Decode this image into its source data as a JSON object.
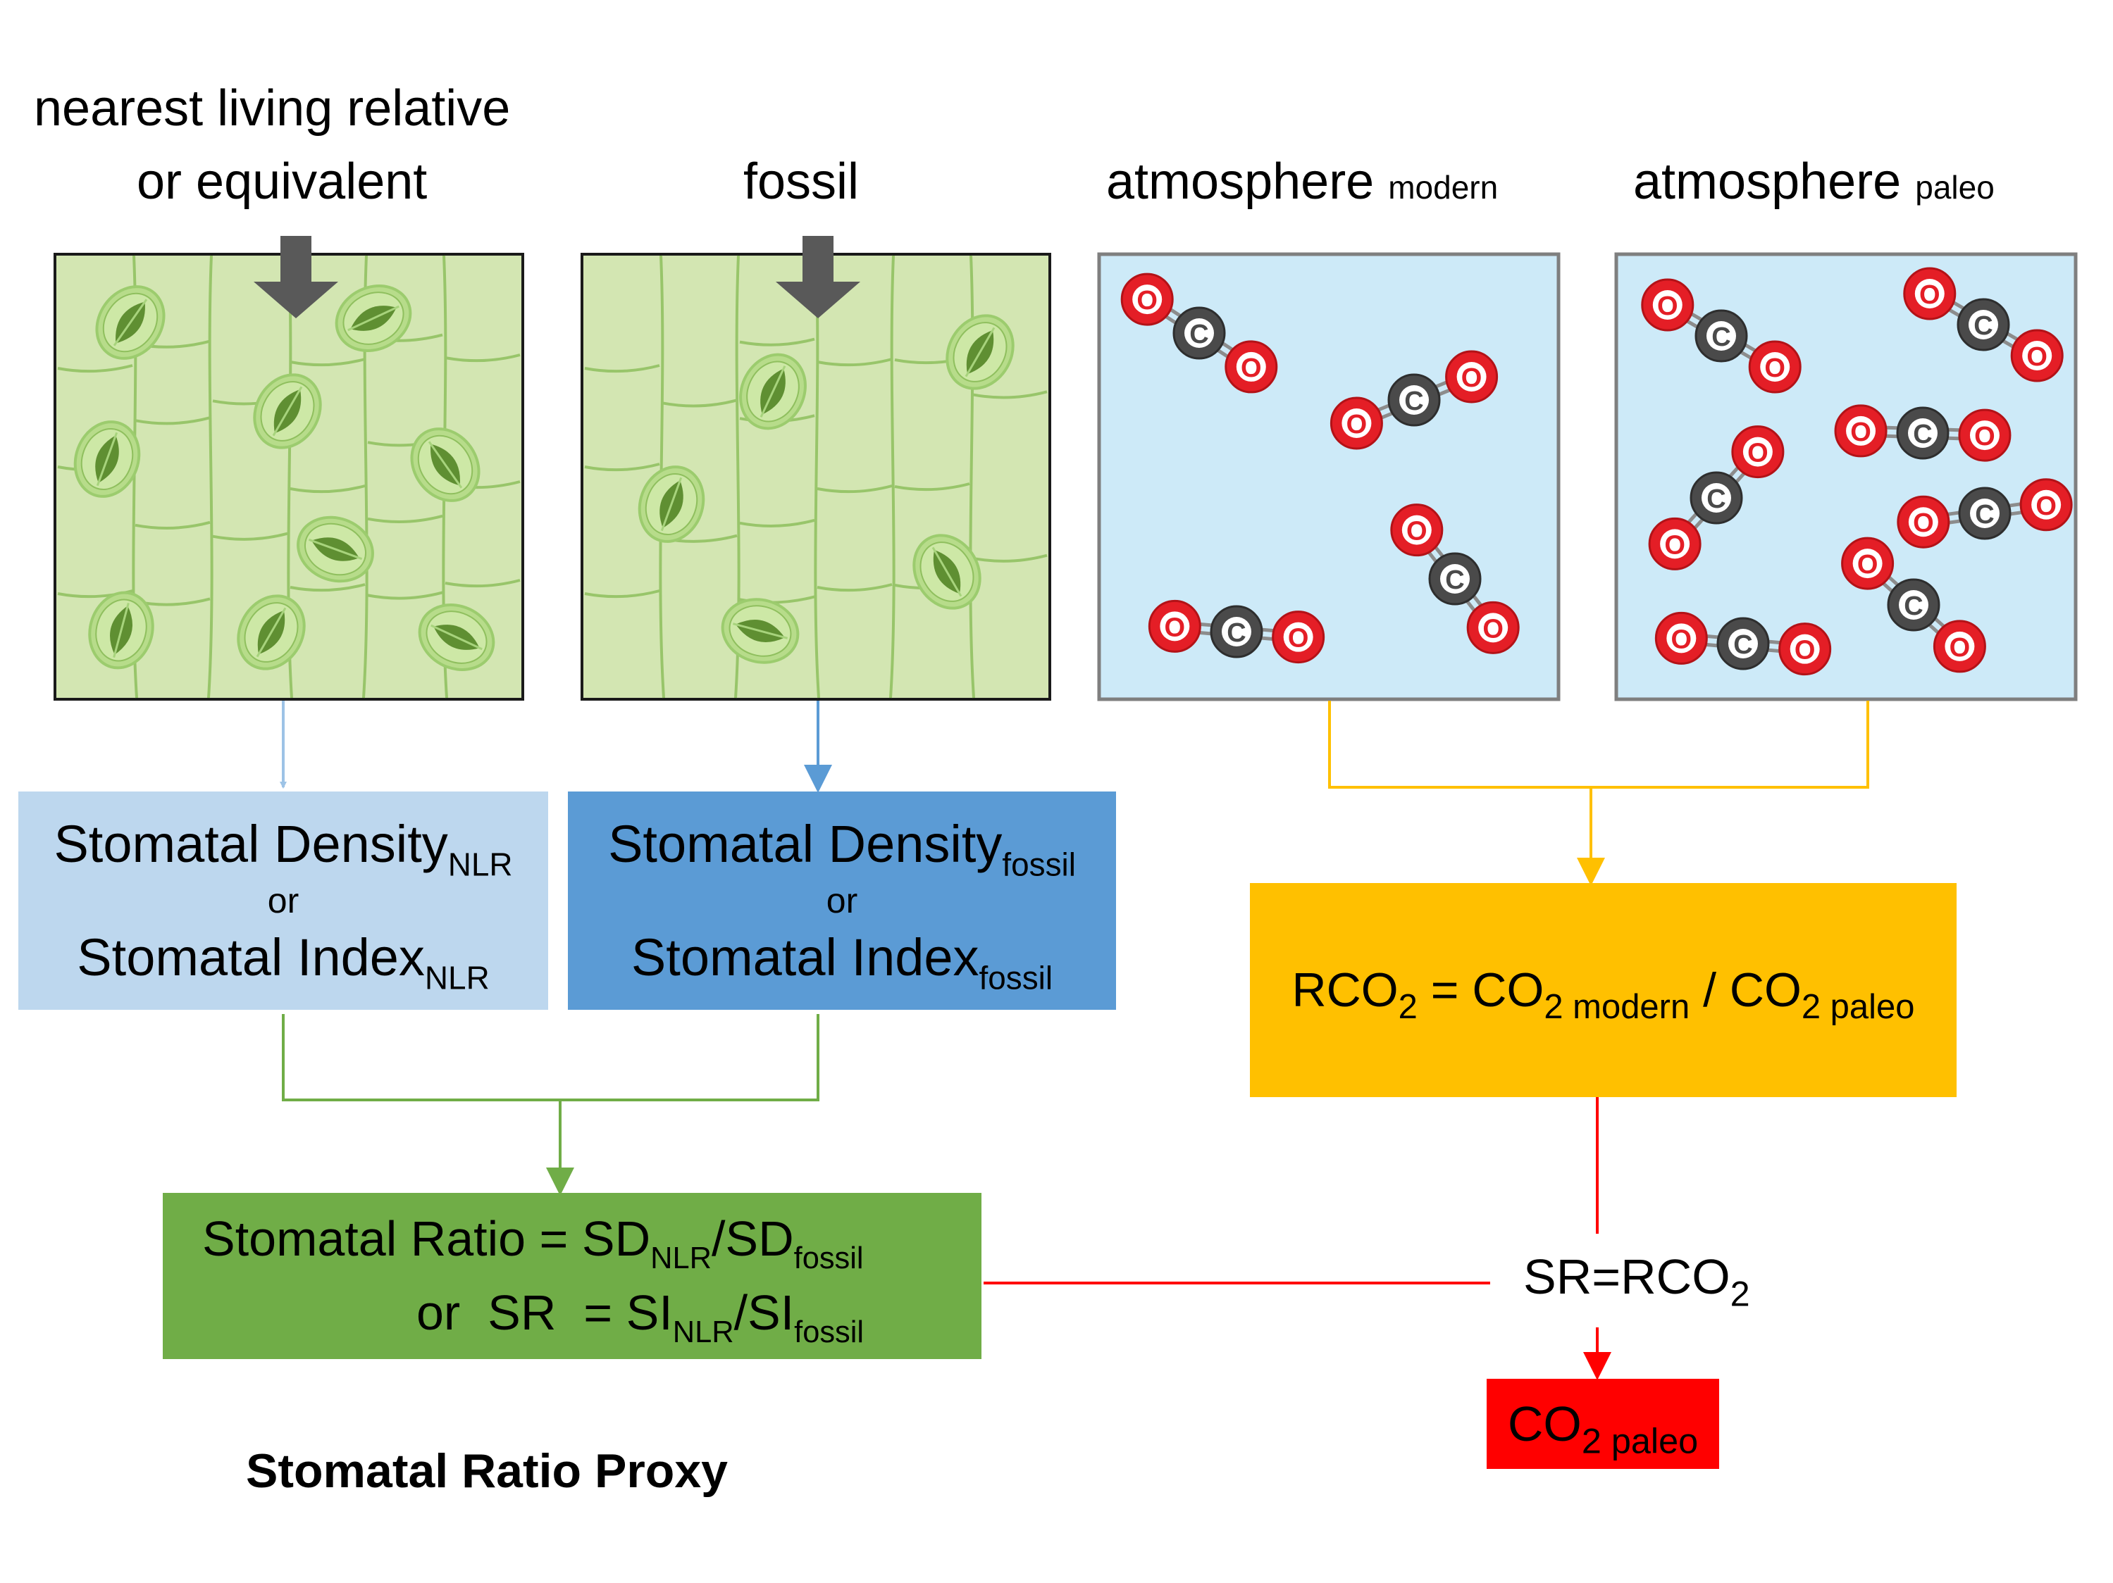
{
  "headers": {
    "nlr_line1": "nearest living relative",
    "nlr_line2": "or equivalent",
    "fossil": "fossil",
    "atm_modern": "atmosphere",
    "atm_modern_sub": "modern",
    "atm_paleo": "atmosphere",
    "atm_paleo_sub": "paleo"
  },
  "nlr_box": {
    "line1": "Stomatal Density",
    "line1_sub": "NLR",
    "or": "or",
    "line2": "Stomatal Index",
    "line2_sub": "NLR"
  },
  "fossil_box": {
    "line1": "Stomatal Density",
    "line1_sub": "fossil",
    "or": "or",
    "line2": "Stomatal Index",
    "line2_sub": "fossil"
  },
  "rco2_box": {
    "rco": "RCO",
    "two": "2",
    "equals_co": " = CO",
    "modern_sub": "2 modern",
    "slash_co": " / CO",
    "paleo_sub": "2 paleo"
  },
  "sr_box": {
    "l1_pre": "Stomatal Ratio = SD",
    "l1_sub1": "NLR",
    "l1_mid": "/SD",
    "l1_sub2": "fossil",
    "l2_pre": "or  SR  = SI",
    "l2_sub1": "NLR",
    "l2_mid": "/SI",
    "l2_sub2": "fossil"
  },
  "sr_eq": {
    "text": "SR=RCO",
    "sub": "2"
  },
  "co2_paleo": {
    "text": "CO",
    "sub": "2 paleo"
  },
  "caption": "Stomatal Ratio Proxy",
  "molecule_labels": {
    "oxygen": "O",
    "carbon": "C"
  },
  "colors": {
    "leaf_bg": "#d3e6b2",
    "leaf_line": "#98c56a",
    "stomata_guard": "#b7dc8a",
    "stomata_pore": "#5f8f32",
    "arrow_gray": "#595959",
    "atm_bg": "#cdeaf8",
    "atm_border": "#7f7f7f",
    "oxygen": "#e41e26",
    "carbon": "#4a4a4a",
    "nlr_box": "#bdd7ee",
    "fossil_box": "#5b9bd5",
    "rco2_box": "#ffc000",
    "sr_box": "#70ad47",
    "paleo_box": "#ff0000",
    "line_nlr": "#9dc3e6",
    "line_fossil": "#5b9bd5",
    "line_green": "#70ad47",
    "line_yellow": "#ffc000",
    "line_red": "#ff0000"
  },
  "icons": [
    "down-arrow-icon",
    "stomata-icon",
    "co2-molecule-icon"
  ]
}
